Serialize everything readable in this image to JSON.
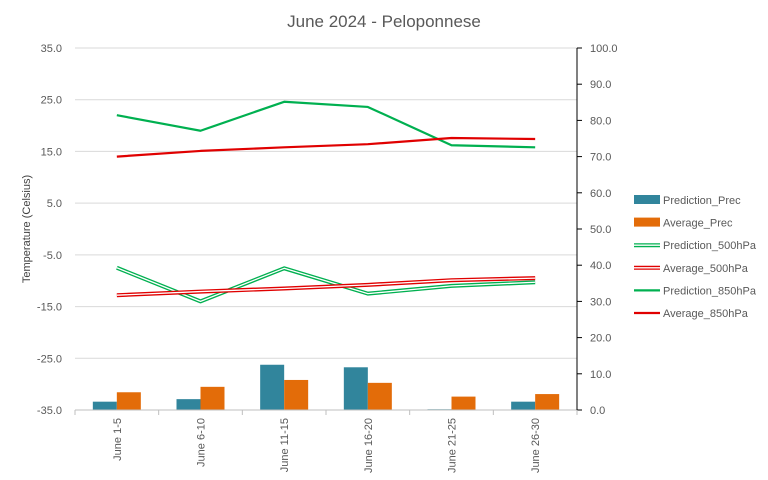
{
  "chart_data": {
    "type": "bar+line",
    "title": "June 2024 - Peloponnese",
    "ylabel": "Temperature (Celsius)",
    "y2label": "",
    "categories": [
      "June 1-5",
      "June 6-10",
      "June 11-15",
      "June 16-20",
      "June 21-25",
      "June 26-30"
    ],
    "ylim": [
      -35,
      35
    ],
    "yticks": [
      "35.0",
      "25.0",
      "15.0",
      "5.0",
      "-5.0",
      "-15.0",
      "-25.0",
      "-35.0"
    ],
    "y2lim": [
      0,
      100
    ],
    "y2ticks": [
      "100.0",
      "90.0",
      "80.0",
      "70.0",
      "60.0",
      "50.0",
      "40.0",
      "30.0",
      "20.0",
      "10.0",
      "0.0"
    ],
    "grid": true,
    "legend_position": "right",
    "series": [
      {
        "name": "Prediction_Prec",
        "kind": "bar",
        "axis": "secondary",
        "color": "#31859C",
        "values": [
          2.3,
          3.0,
          12.5,
          11.8,
          0.2,
          2.3
        ]
      },
      {
        "name": "Average_Prec",
        "kind": "bar",
        "axis": "secondary",
        "color": "#E36C09",
        "values": [
          4.9,
          6.4,
          8.3,
          7.5,
          3.7,
          4.4
        ]
      },
      {
        "name": "Prediction_500hPa",
        "kind": "double-line",
        "axis": "primary",
        "color": "#00B050",
        "values": [
          -7.5,
          -14.0,
          -7.6,
          -12.5,
          -11.0,
          -10.3
        ]
      },
      {
        "name": "Average_500hPa",
        "kind": "double-line",
        "axis": "primary",
        "color": "#E00000",
        "values": [
          -12.8,
          -12.1,
          -11.5,
          -10.8,
          -9.9,
          -9.5
        ]
      },
      {
        "name": "Prediction_850hPa",
        "kind": "line",
        "axis": "primary",
        "color": "#00B050",
        "values": [
          22.0,
          19.0,
          24.6,
          23.6,
          16.2,
          15.8
        ]
      },
      {
        "name": "Average_850hPa",
        "kind": "line",
        "axis": "primary",
        "color": "#E00000",
        "values": [
          14.0,
          15.1,
          15.8,
          16.4,
          17.6,
          17.4
        ]
      }
    ]
  }
}
